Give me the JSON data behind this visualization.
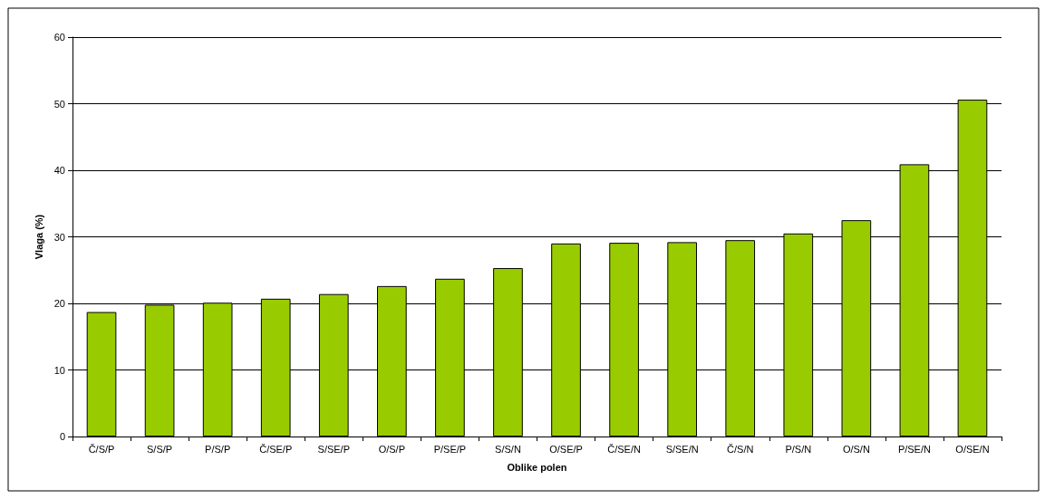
{
  "chart_data": {
    "type": "bar",
    "xlabel": "Oblike polen",
    "ylabel": "Vlaga (%)",
    "categories": [
      "Č/S/P",
      "S/S/P",
      "P/S/P",
      "Č/SE/P",
      "S/SE/P",
      "O/S/P",
      "P/SE/P",
      "S/S/N",
      "O/SE/P",
      "Č/SE/N",
      "S/SE/N",
      "Č/S/N",
      "P/S/N",
      "O/S/N",
      "P/SE/N",
      "O/SE/N"
    ],
    "values": [
      18.7,
      19.8,
      20.1,
      20.7,
      21.4,
      22.6,
      23.7,
      25.3,
      29.0,
      29.1,
      29.2,
      29.5,
      30.5,
      32.5,
      40.9,
      50.6
    ],
    "color": "#99cc00",
    "ylim": [
      0,
      60
    ],
    "yticks": [
      0,
      10,
      20,
      30,
      40,
      50,
      60
    ],
    "grid": "y"
  }
}
